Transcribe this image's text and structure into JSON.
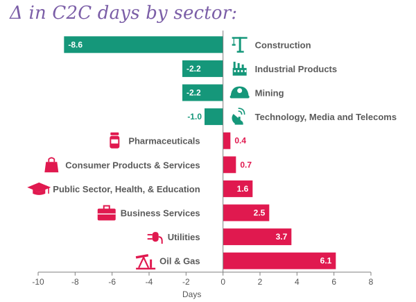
{
  "chart_data": {
    "type": "bar",
    "orientation": "horizontal",
    "title": "Δ in C2C days by sector:",
    "xlabel": "Days",
    "xlim": [
      -10,
      8
    ],
    "xticks": [
      -10,
      -8,
      -6,
      -4,
      -2,
      0,
      2,
      4,
      6,
      8
    ],
    "grid": false,
    "categories": [
      "Construction",
      "Industrial Products",
      "Mining",
      "Technology, Media and Telecoms",
      "Pharmaceuticals",
      "Consumer Products & Services",
      "Public Sector, Health, & Education",
      "Business Services",
      "Utilities",
      "Oil & Gas"
    ],
    "values": [
      -8.6,
      -2.2,
      -2.2,
      -1.0,
      0.4,
      0.7,
      1.6,
      2.5,
      3.7,
      6.1
    ],
    "value_labels": [
      "-8.6",
      "-2.2",
      "-2.2",
      "-1.0",
      "0.4",
      "0.7",
      "1.6",
      "2.5",
      "3.7",
      "6.1"
    ],
    "icons": [
      "crane-icon",
      "factory-icon",
      "mining-helmet-icon",
      "satellite-dish-icon",
      "pill-bottle-icon",
      "shopping-bag-icon",
      "graduation-cap-icon",
      "briefcase-icon",
      "plug-icon",
      "oil-pump-icon"
    ],
    "colors": {
      "negative": "#15977a",
      "positive": "#e0194f"
    }
  }
}
